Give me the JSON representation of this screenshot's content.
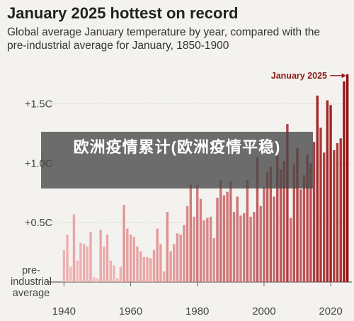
{
  "overlay": {
    "text": "欧洲疫情累计(欧洲疫情平稳)"
  },
  "chart_data": {
    "type": "bar",
    "title": "January 2025 hottest on record",
    "subtitle": "Global average January temperature by year, compared with the pre-industrial average for January, 1850-1900",
    "annotation": "January 2025",
    "xlabel": "",
    "ylabel": "",
    "ylim": [
      0,
      1.85
    ],
    "y_ticks": [
      {
        "value": 0,
        "label": "pre-industrial average"
      },
      {
        "value": 0.5,
        "label": "+0.5C"
      },
      {
        "value": 1.0,
        "label": "+1.0C"
      },
      {
        "value": 1.5,
        "label": "+1.5C"
      }
    ],
    "x_ticks": [
      1940,
      1960,
      1980,
      2000,
      2020
    ],
    "grid": true,
    "years": [
      1940,
      1941,
      1942,
      1943,
      1944,
      1945,
      1946,
      1947,
      1948,
      1949,
      1950,
      1951,
      1952,
      1953,
      1954,
      1955,
      1956,
      1957,
      1958,
      1959,
      1960,
      1961,
      1962,
      1963,
      1964,
      1965,
      1966,
      1967,
      1968,
      1969,
      1970,
      1971,
      1972,
      1973,
      1974,
      1975,
      1976,
      1977,
      1978,
      1979,
      1980,
      1981,
      1982,
      1983,
      1984,
      1985,
      1986,
      1987,
      1988,
      1989,
      1990,
      1991,
      1992,
      1993,
      1994,
      1995,
      1996,
      1997,
      1998,
      1999,
      2000,
      2001,
      2002,
      2003,
      2004,
      2005,
      2006,
      2007,
      2008,
      2009,
      2010,
      2011,
      2012,
      2013,
      2014,
      2015,
      2016,
      2017,
      2018,
      2019,
      2020,
      2021,
      2022,
      2023,
      2024,
      2025
    ],
    "values": [
      0.27,
      0.4,
      0.13,
      0.57,
      0.18,
      0.33,
      0.32,
      0.3,
      0.42,
      0.04,
      0.03,
      0.44,
      0.3,
      0.4,
      0.18,
      0.14,
      0.03,
      0.13,
      0.65,
      0.45,
      0.4,
      0.38,
      0.3,
      0.26,
      0.21,
      0.21,
      0.2,
      0.27,
      0.45,
      0.32,
      0.09,
      0.59,
      0.26,
      0.32,
      0.41,
      0.4,
      0.48,
      0.64,
      0.82,
      0.55,
      0.82,
      0.7,
      0.52,
      0.54,
      0.55,
      0.37,
      0.71,
      0.86,
      0.73,
      0.76,
      0.85,
      0.59,
      0.72,
      0.56,
      0.58,
      0.86,
      0.55,
      0.59,
      1.05,
      0.64,
      0.8,
      0.93,
      0.97,
      0.72,
      1.07,
      0.95,
      1.02,
      1.33,
      0.54,
      0.99,
      1.13,
      0.78,
      0.9,
      1.07,
      1.0,
      1.18,
      1.57,
      1.3,
      1.09,
      1.53,
      1.49,
      1.11,
      1.17,
      1.21,
      1.69,
      1.75
    ]
  }
}
